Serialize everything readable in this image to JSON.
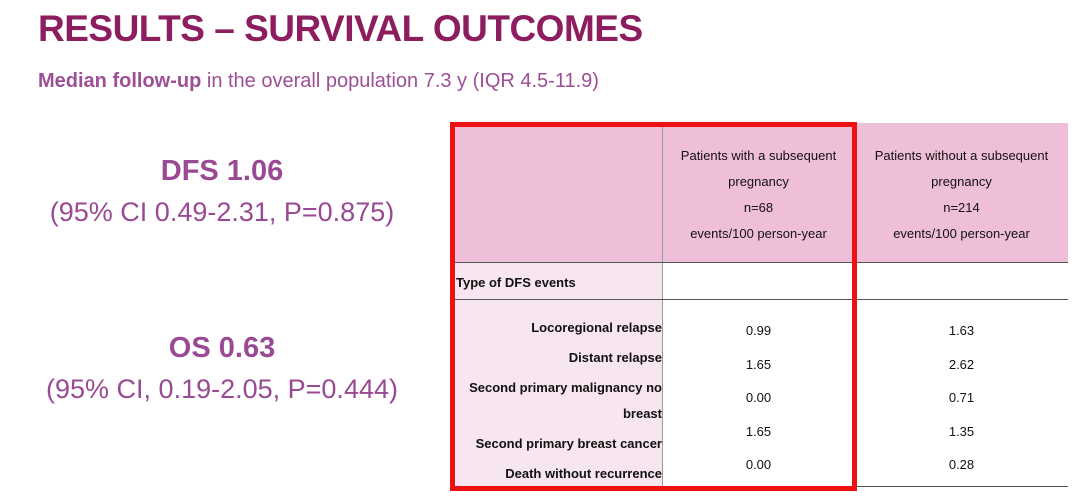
{
  "header": {
    "title": "RESULTS – SURVIVAL OUTCOMES",
    "subtitle_bold": "Median follow-up",
    "subtitle_rest": "in the overall population 7.3 y (IQR 4.5-11.9)"
  },
  "stats": [
    {
      "main": "DFS 1.06",
      "ci": "(95% CI 0.49-2.31, P=0.875)"
    },
    {
      "main": "OS 0.63",
      "ci": "(95% CI, 0.19-2.05, P=0.444)"
    }
  ],
  "table": {
    "columns": [
      [
        "Patients with a subsequent",
        "pregnancy",
        "n=68",
        "events/100 person-year"
      ],
      [
        "Patients without a subsequent",
        "pregnancy",
        "n=214",
        "events/100 person-year"
      ]
    ],
    "section": "Type of DFS events",
    "rows": [
      [
        "Locoregional relapse",
        "0.99",
        "1.63"
      ],
      [
        "Distant relapse",
        "1.65",
        "2.62"
      ],
      [
        "Second primary malignancy no breast",
        "0.00",
        "0.71"
      ],
      [
        "Second primary breast cancer",
        "1.65",
        "1.35"
      ],
      [
        "Death without recurrence",
        "0.00",
        "0.28"
      ]
    ]
  }
}
